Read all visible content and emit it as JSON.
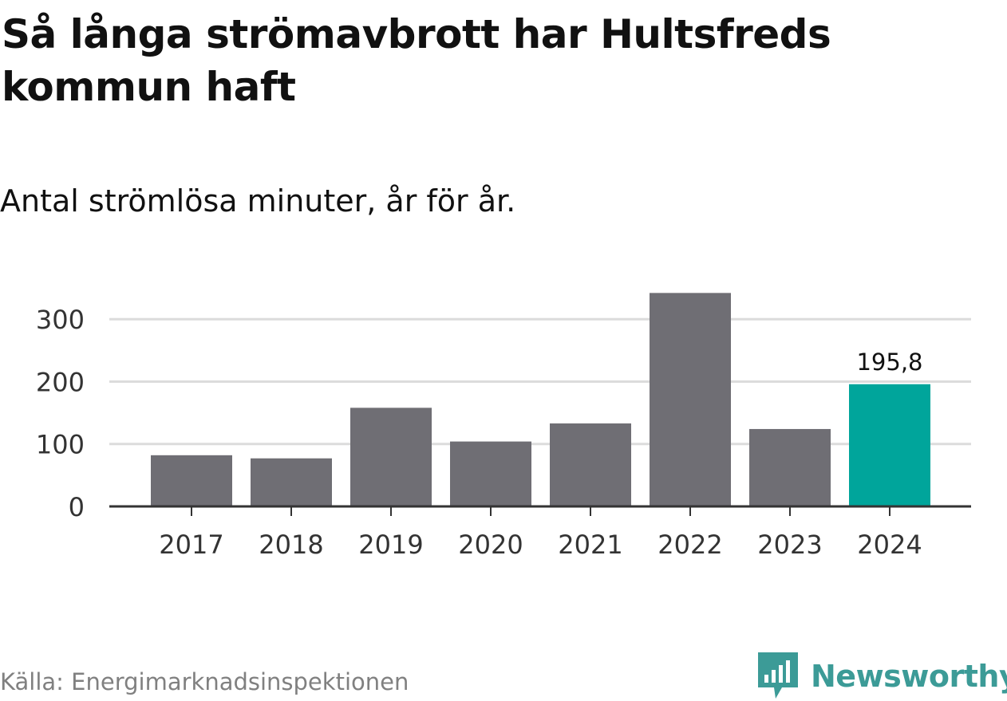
{
  "title": "Så långa strömavbrott har Hultsfreds kommun haft",
  "subtitle": "Antal strömlösa minuter, år för år.",
  "source": "Källa: Energimarknadsinspektionen",
  "brand": {
    "name": "Newsworthy",
    "icon": "newsworthy-logo-icon",
    "color": "#3c9b97"
  },
  "colors": {
    "bar": "#6f6e74",
    "highlight": "#00a59b",
    "grid": "#dcdcdc",
    "axis": "#333333"
  },
  "chart_data": {
    "type": "bar",
    "categories": [
      "2017",
      "2018",
      "2019",
      "2020",
      "2021",
      "2022",
      "2023",
      "2024"
    ],
    "values": [
      82,
      77,
      158,
      104,
      133,
      342,
      124,
      195.8
    ],
    "highlight_index": 7,
    "data_labels": [
      {
        "index": 7,
        "text": "195,8"
      }
    ],
    "yticks": [
      0,
      100,
      200,
      300
    ],
    "ylim": [
      0,
      345
    ],
    "grid": true,
    "xlabel": "",
    "ylabel": ""
  }
}
